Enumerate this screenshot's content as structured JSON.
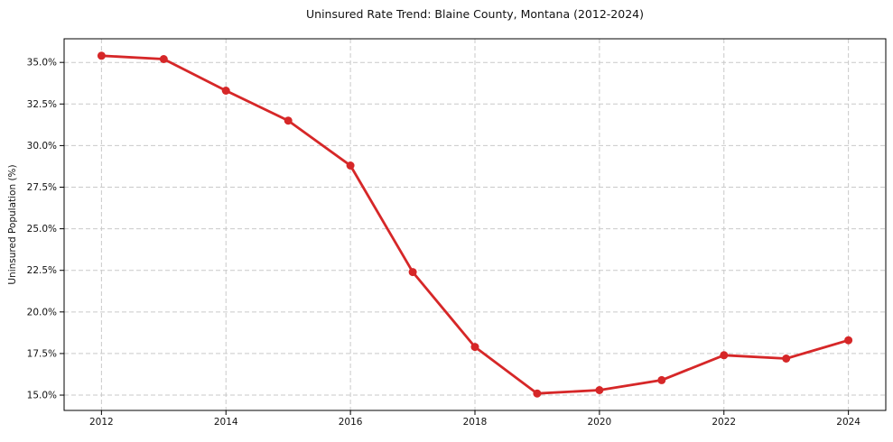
{
  "chart_data": {
    "type": "line",
    "title": "Uninsured Rate Trend: Blaine County, Montana (2012-2024)",
    "xlabel": "",
    "ylabel": "Uninsured Population (%)",
    "x": [
      2012,
      2013,
      2014,
      2015,
      2016,
      2017,
      2018,
      2019,
      2020,
      2021,
      2022,
      2023,
      2024
    ],
    "values": [
      35.4,
      35.2,
      33.3,
      31.5,
      28.8,
      22.4,
      17.9,
      15.1,
      15.3,
      15.9,
      17.4,
      17.2,
      18.3
    ],
    "xticks": [
      2012,
      2014,
      2016,
      2018,
      2020,
      2022,
      2024
    ],
    "xtick_labels": [
      "2012",
      "2014",
      "2016",
      "2018",
      "2020",
      "2022",
      "2024"
    ],
    "yticks": [
      15.0,
      17.5,
      20.0,
      22.5,
      25.0,
      27.5,
      30.0,
      32.5,
      35.0
    ],
    "ytick_labels": [
      "15.0%",
      "17.5%",
      "20.0%",
      "22.5%",
      "25.0%",
      "27.5%",
      "30.0%",
      "32.5%",
      "35.0%"
    ],
    "xlim": [
      2011.4,
      2024.6
    ],
    "ylim": [
      14.08,
      36.42
    ],
    "grid": true,
    "grid_style": "dashed",
    "legend": false,
    "marker": "circle",
    "colors": {
      "line": "#d62728",
      "marker": "#d62728",
      "grid": "#c9c9c9",
      "spine": "#000000",
      "text": "#111111",
      "background": "#ffffff"
    }
  }
}
